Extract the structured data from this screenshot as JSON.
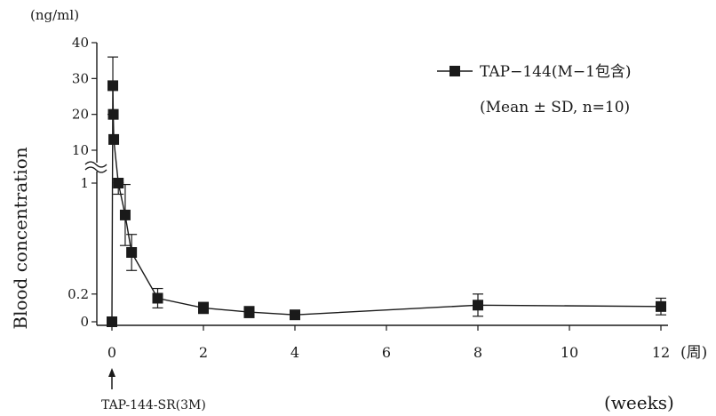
{
  "chart_data": {
    "type": "line",
    "ylabel": "Blood concentration",
    "y_unit": "(ng/ml)",
    "x_unit": "(周)",
    "x_unit_en": "(weeks)",
    "y_scale": "broken: linear 0–1 below the break, compressed 10–40 above the break",
    "y_ticks": [
      "0",
      "0.2",
      "1",
      "10",
      "20",
      "30",
      "40"
    ],
    "x_ticks": [
      "0",
      "2",
      "4",
      "6",
      "8",
      "10",
      "12"
    ],
    "xlim": [
      0,
      12
    ],
    "grid": false,
    "legend": {
      "position": "top-right",
      "series_label": "TAP−144(M−1包含)",
      "note": "(Mean ± SD, n=10)"
    },
    "annotation": {
      "text": "TAP-144-SR(3M)",
      "x": 0,
      "arrow": "up"
    },
    "series": [
      {
        "name": "TAP−144(M−1包含)",
        "color": "#1a1a1a",
        "marker": "square",
        "points": [
          {
            "x": 0,
            "y": 0,
            "sd": 0
          },
          {
            "x": 0.02,
            "y": 28,
            "sd": 8
          },
          {
            "x": 0.03,
            "y": 20,
            "sd": 0
          },
          {
            "x": 0.04,
            "y": 13,
            "sd": 0
          },
          {
            "x": 0.14,
            "y": 1.0,
            "sd": 0.08
          },
          {
            "x": 0.29,
            "y": 0.77,
            "sd": 0.22
          },
          {
            "x": 0.43,
            "y": 0.5,
            "sd": 0.13
          },
          {
            "x": 1,
            "y": 0.17,
            "sd": 0.07
          },
          {
            "x": 2,
            "y": 0.1,
            "sd": 0.04
          },
          {
            "x": 3,
            "y": 0.07,
            "sd": 0.04
          },
          {
            "x": 4,
            "y": 0.05,
            "sd": 0.03
          },
          {
            "x": 8,
            "y": 0.12,
            "sd": 0.08
          },
          {
            "x": 12,
            "y": 0.11,
            "sd": 0.06
          }
        ]
      }
    ]
  }
}
